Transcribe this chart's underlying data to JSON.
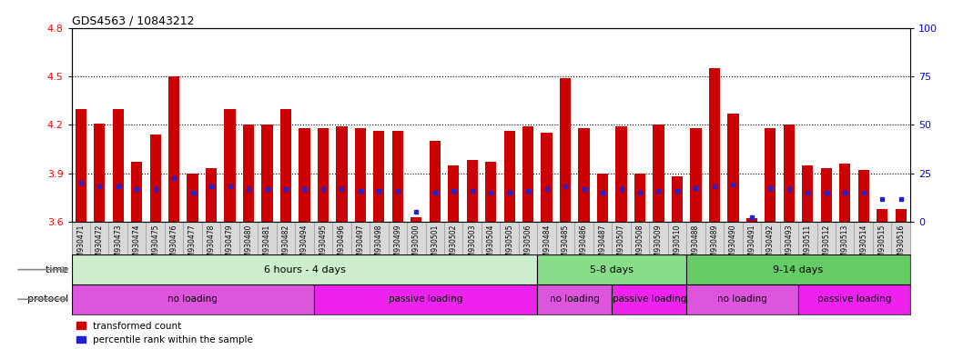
{
  "title": "GDS4563 / 10843212",
  "samples": [
    "GSM930471",
    "GSM930472",
    "GSM930473",
    "GSM930474",
    "GSM930475",
    "GSM930476",
    "GSM930477",
    "GSM930478",
    "GSM930479",
    "GSM930480",
    "GSM930481",
    "GSM930482",
    "GSM930494",
    "GSM930495",
    "GSM930496",
    "GSM930497",
    "GSM930498",
    "GSM930499",
    "GSM930500",
    "GSM930501",
    "GSM930502",
    "GSM930503",
    "GSM930504",
    "GSM930505",
    "GSM930506",
    "GSM930484",
    "GSM930485",
    "GSM930486",
    "GSM930487",
    "GSM930507",
    "GSM930508",
    "GSM930509",
    "GSM930510",
    "GSM930488",
    "GSM930489",
    "GSM930490",
    "GSM930491",
    "GSM930492",
    "GSM930493",
    "GSM930511",
    "GSM930512",
    "GSM930513",
    "GSM930514",
    "GSM930515",
    "GSM930516"
  ],
  "red_values": [
    4.3,
    4.21,
    4.3,
    3.97,
    4.14,
    4.5,
    3.9,
    3.93,
    4.3,
    4.2,
    4.2,
    4.3,
    4.18,
    4.18,
    4.19,
    4.18,
    4.16,
    4.16,
    3.63,
    4.1,
    3.95,
    3.98,
    3.97,
    4.16,
    4.19,
    4.15,
    4.49,
    4.18,
    3.9,
    4.19,
    3.9,
    4.2,
    3.88,
    4.18,
    4.55,
    4.27,
    3.62,
    4.18,
    4.2,
    3.95,
    3.93,
    3.96,
    3.92,
    3.68,
    3.68
  ],
  "blue_values": [
    3.84,
    3.82,
    3.82,
    3.8,
    3.8,
    3.87,
    3.78,
    3.82,
    3.82,
    3.8,
    3.8,
    3.8,
    3.8,
    3.8,
    3.8,
    3.79,
    3.79,
    3.79,
    3.66,
    3.78,
    3.79,
    3.79,
    3.78,
    3.78,
    3.79,
    3.8,
    3.82,
    3.8,
    3.78,
    3.8,
    3.78,
    3.79,
    3.79,
    3.81,
    3.82,
    3.83,
    3.63,
    3.81,
    3.8,
    3.78,
    3.78,
    3.78,
    3.78,
    3.74,
    3.74
  ],
  "ylim_left": [
    3.6,
    4.8
  ],
  "ylim_right": [
    0,
    100
  ],
  "yticks_left": [
    3.6,
    3.9,
    4.2,
    4.5,
    4.8
  ],
  "yticks_right": [
    0,
    25,
    50,
    75,
    100
  ],
  "bar_color": "#cc0000",
  "dot_color": "#2222cc",
  "bar_width": 0.6,
  "time_groups": [
    {
      "label": "6 hours - 4 days",
      "start": 0,
      "end": 25,
      "color": "#cceecc"
    },
    {
      "label": "5-8 days",
      "start": 25,
      "end": 33,
      "color": "#88dd88"
    },
    {
      "label": "9-14 days",
      "start": 33,
      "end": 45,
      "color": "#66cc66"
    }
  ],
  "protocol_groups": [
    {
      "label": "no loading",
      "start": 0,
      "end": 13,
      "color": "#dd66dd"
    },
    {
      "label": "passive loading",
      "start": 13,
      "end": 25,
      "color": "#ee44ee"
    },
    {
      "label": "no loading",
      "start": 25,
      "end": 29,
      "color": "#dd66dd"
    },
    {
      "label": "passive loading",
      "start": 29,
      "end": 33,
      "color": "#ee44ee"
    },
    {
      "label": "no loading",
      "start": 33,
      "end": 39,
      "color": "#dd66dd"
    },
    {
      "label": "passive loading",
      "start": 39,
      "end": 45,
      "color": "#ee44ee"
    }
  ],
  "legend_items": [
    {
      "label": "transformed count",
      "color": "#cc0000"
    },
    {
      "label": "percentile rank within the sample",
      "color": "#2222cc"
    }
  ],
  "time_label": "time",
  "protocol_label": "protocol",
  "bg_color": "#f0f0f0",
  "chart_bg": "#ffffff"
}
